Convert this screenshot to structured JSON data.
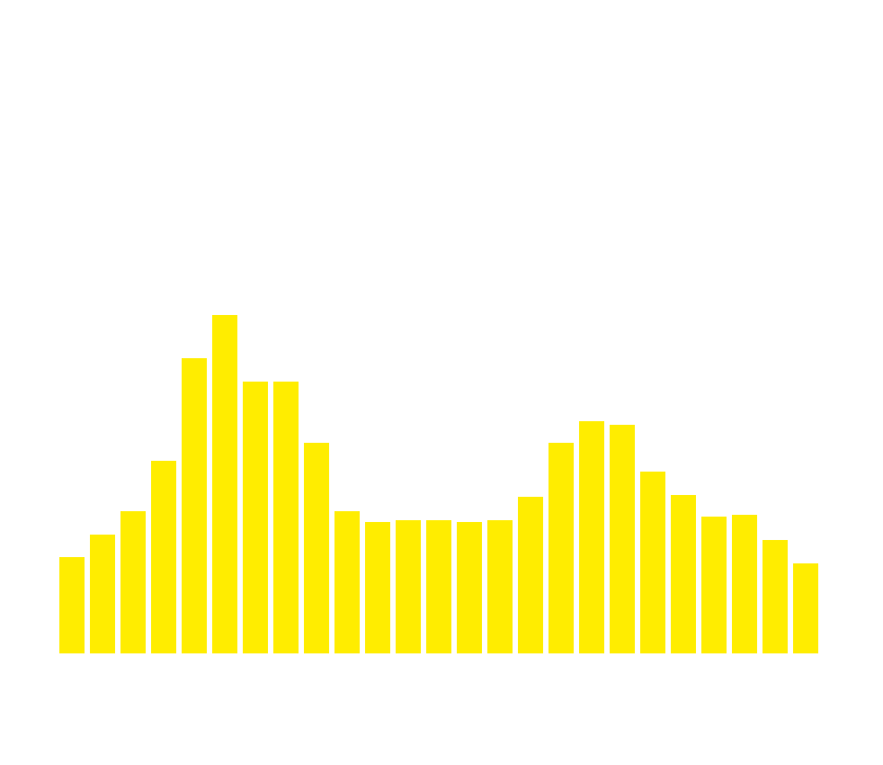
{
  "chart_data": {
    "type": "bar",
    "values": [
      107,
      132,
      158,
      214,
      328,
      376,
      302,
      302,
      234,
      158,
      146,
      148,
      148,
      146,
      148,
      174,
      234,
      258,
      254,
      202,
      176,
      152,
      154,
      126,
      100
    ],
    "ylim": [
      0,
      500
    ],
    "grid": false,
    "bar_color": "#ffed00",
    "background_color": "#ffffff"
  }
}
